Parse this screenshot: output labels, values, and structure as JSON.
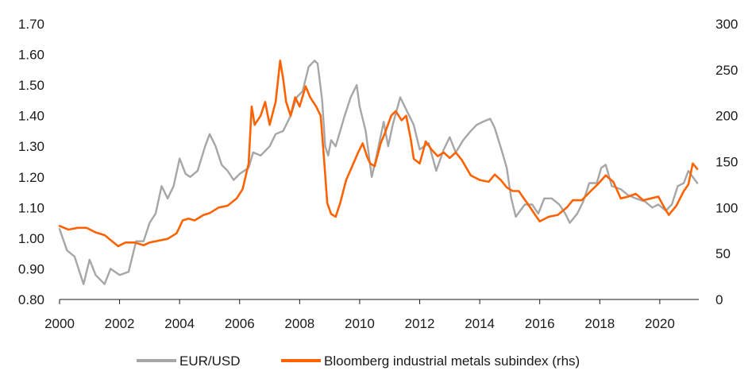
{
  "chart_data": {
    "type": "line",
    "title": "",
    "xlabel": "",
    "ylabel": "",
    "xlim": [
      2000,
      2021.3
    ],
    "ylim": [
      0.8,
      1.7
    ],
    "y2lim": [
      0,
      300
    ],
    "grid": false,
    "legend_position": "bottom",
    "x_ticks": [
      "2000",
      "2002",
      "2004",
      "2006",
      "2008",
      "2010",
      "2012",
      "2014",
      "2016",
      "2018",
      "2020"
    ],
    "y_ticks": [
      "0.80",
      "0.90",
      "1.00",
      "1.10",
      "1.20",
      "1.30",
      "1.40",
      "1.50",
      "1.60",
      "1.70"
    ],
    "y2_ticks": [
      "0",
      "50",
      "100",
      "150",
      "200",
      "250",
      "300"
    ],
    "series": [
      {
        "name": "EUR/USD",
        "axis": "left",
        "color": "#a6a6a6",
        "points": [
          [
            2000.0,
            1.03
          ],
          [
            2000.25,
            0.96
          ],
          [
            2000.5,
            0.94
          ],
          [
            2000.8,
            0.85
          ],
          [
            2001.0,
            0.93
          ],
          [
            2001.2,
            0.88
          ],
          [
            2001.5,
            0.85
          ],
          [
            2001.7,
            0.9
          ],
          [
            2002.0,
            0.88
          ],
          [
            2002.3,
            0.89
          ],
          [
            2002.55,
            0.99
          ],
          [
            2002.8,
            0.99
          ],
          [
            2003.0,
            1.05
          ],
          [
            2003.2,
            1.08
          ],
          [
            2003.4,
            1.17
          ],
          [
            2003.6,
            1.13
          ],
          [
            2003.8,
            1.17
          ],
          [
            2004.0,
            1.26
          ],
          [
            2004.2,
            1.21
          ],
          [
            2004.35,
            1.2
          ],
          [
            2004.6,
            1.22
          ],
          [
            2004.85,
            1.3
          ],
          [
            2005.0,
            1.34
          ],
          [
            2005.2,
            1.3
          ],
          [
            2005.4,
            1.24
          ],
          [
            2005.6,
            1.22
          ],
          [
            2005.8,
            1.19
          ],
          [
            2006.0,
            1.21
          ],
          [
            2006.3,
            1.23
          ],
          [
            2006.45,
            1.28
          ],
          [
            2006.7,
            1.27
          ],
          [
            2007.0,
            1.3
          ],
          [
            2007.2,
            1.34
          ],
          [
            2007.45,
            1.35
          ],
          [
            2007.7,
            1.4
          ],
          [
            2007.9,
            1.46
          ],
          [
            2008.1,
            1.48
          ],
          [
            2008.3,
            1.56
          ],
          [
            2008.5,
            1.58
          ],
          [
            2008.6,
            1.57
          ],
          [
            2008.75,
            1.45
          ],
          [
            2008.85,
            1.3
          ],
          [
            2008.95,
            1.27
          ],
          [
            2009.05,
            1.32
          ],
          [
            2009.2,
            1.3
          ],
          [
            2009.5,
            1.4
          ],
          [
            2009.7,
            1.46
          ],
          [
            2009.9,
            1.5
          ],
          [
            2010.0,
            1.43
          ],
          [
            2010.2,
            1.35
          ],
          [
            2010.4,
            1.2
          ],
          [
            2010.5,
            1.24
          ],
          [
            2010.8,
            1.38
          ],
          [
            2010.95,
            1.3
          ],
          [
            2011.1,
            1.37
          ],
          [
            2011.35,
            1.46
          ],
          [
            2011.55,
            1.42
          ],
          [
            2011.8,
            1.37
          ],
          [
            2012.0,
            1.29
          ],
          [
            2012.3,
            1.31
          ],
          [
            2012.55,
            1.22
          ],
          [
            2012.8,
            1.29
          ],
          [
            2013.0,
            1.33
          ],
          [
            2013.2,
            1.28
          ],
          [
            2013.45,
            1.32
          ],
          [
            2013.7,
            1.35
          ],
          [
            2013.9,
            1.37
          ],
          [
            2014.1,
            1.38
          ],
          [
            2014.35,
            1.39
          ],
          [
            2014.5,
            1.36
          ],
          [
            2014.75,
            1.28
          ],
          [
            2014.9,
            1.23
          ],
          [
            2015.05,
            1.13
          ],
          [
            2015.2,
            1.07
          ],
          [
            2015.5,
            1.11
          ],
          [
            2015.75,
            1.11
          ],
          [
            2015.95,
            1.08
          ],
          [
            2016.15,
            1.13
          ],
          [
            2016.4,
            1.13
          ],
          [
            2016.65,
            1.11
          ],
          [
            2016.85,
            1.08
          ],
          [
            2017.0,
            1.05
          ],
          [
            2017.25,
            1.08
          ],
          [
            2017.45,
            1.12
          ],
          [
            2017.65,
            1.18
          ],
          [
            2017.9,
            1.18
          ],
          [
            2018.05,
            1.23
          ],
          [
            2018.2,
            1.24
          ],
          [
            2018.4,
            1.17
          ],
          [
            2018.7,
            1.16
          ],
          [
            2018.95,
            1.14
          ],
          [
            2019.2,
            1.13
          ],
          [
            2019.5,
            1.12
          ],
          [
            2019.75,
            1.1
          ],
          [
            2019.95,
            1.11
          ],
          [
            2020.2,
            1.09
          ],
          [
            2020.4,
            1.11
          ],
          [
            2020.6,
            1.17
          ],
          [
            2020.8,
            1.18
          ],
          [
            2020.95,
            1.22
          ],
          [
            2021.1,
            1.2
          ],
          [
            2021.25,
            1.18
          ]
        ]
      },
      {
        "name": "Bloomberg industrial metals subindex (rhs)",
        "axis": "right",
        "color": "#ff6200",
        "points": [
          [
            2000.0,
            80
          ],
          [
            2000.3,
            76
          ],
          [
            2000.6,
            78
          ],
          [
            2000.9,
            78
          ],
          [
            2001.2,
            73
          ],
          [
            2001.5,
            70
          ],
          [
            2001.8,
            62
          ],
          [
            2001.95,
            58
          ],
          [
            2002.2,
            62
          ],
          [
            2002.5,
            62
          ],
          [
            2002.8,
            59
          ],
          [
            2003.0,
            62
          ],
          [
            2003.3,
            64
          ],
          [
            2003.6,
            66
          ],
          [
            2003.9,
            72
          ],
          [
            2004.1,
            86
          ],
          [
            2004.3,
            88
          ],
          [
            2004.5,
            86
          ],
          [
            2004.8,
            92
          ],
          [
            2005.0,
            94
          ],
          [
            2005.3,
            100
          ],
          [
            2005.6,
            102
          ],
          [
            2005.9,
            110
          ],
          [
            2006.1,
            120
          ],
          [
            2006.3,
            148
          ],
          [
            2006.4,
            210
          ],
          [
            2006.5,
            190
          ],
          [
            2006.7,
            200
          ],
          [
            2006.85,
            215
          ],
          [
            2007.0,
            190
          ],
          [
            2007.2,
            215
          ],
          [
            2007.35,
            260
          ],
          [
            2007.45,
            240
          ],
          [
            2007.55,
            215
          ],
          [
            2007.7,
            200
          ],
          [
            2007.85,
            220
          ],
          [
            2008.0,
            210
          ],
          [
            2008.2,
            232
          ],
          [
            2008.35,
            220
          ],
          [
            2008.55,
            210
          ],
          [
            2008.7,
            200
          ],
          [
            2008.82,
            150
          ],
          [
            2008.92,
            105
          ],
          [
            2009.05,
            93
          ],
          [
            2009.2,
            90
          ],
          [
            2009.35,
            105
          ],
          [
            2009.55,
            130
          ],
          [
            2009.75,
            145
          ],
          [
            2009.95,
            160
          ],
          [
            2010.1,
            170
          ],
          [
            2010.25,
            155
          ],
          [
            2010.35,
            148
          ],
          [
            2010.5,
            145
          ],
          [
            2010.7,
            170
          ],
          [
            2010.85,
            182
          ],
          [
            2011.05,
            200
          ],
          [
            2011.2,
            205
          ],
          [
            2011.4,
            195
          ],
          [
            2011.55,
            200
          ],
          [
            2011.7,
            175
          ],
          [
            2011.8,
            153
          ],
          [
            2012.0,
            148
          ],
          [
            2012.2,
            172
          ],
          [
            2012.4,
            163
          ],
          [
            2012.6,
            156
          ],
          [
            2012.8,
            160
          ],
          [
            2013.0,
            154
          ],
          [
            2013.2,
            160
          ],
          [
            2013.4,
            152
          ],
          [
            2013.7,
            135
          ],
          [
            2014.0,
            130
          ],
          [
            2014.3,
            128
          ],
          [
            2014.5,
            136
          ],
          [
            2014.7,
            130
          ],
          [
            2014.9,
            122
          ],
          [
            2015.1,
            118
          ],
          [
            2015.3,
            118
          ],
          [
            2015.6,
            104
          ],
          [
            2015.85,
            92
          ],
          [
            2016.0,
            85
          ],
          [
            2016.3,
            90
          ],
          [
            2016.6,
            92
          ],
          [
            2016.9,
            100
          ],
          [
            2017.1,
            108
          ],
          [
            2017.4,
            108
          ],
          [
            2017.7,
            118
          ],
          [
            2017.95,
            126
          ],
          [
            2018.2,
            135
          ],
          [
            2018.45,
            128
          ],
          [
            2018.7,
            110
          ],
          [
            2018.95,
            112
          ],
          [
            2019.2,
            115
          ],
          [
            2019.45,
            108
          ],
          [
            2019.7,
            110
          ],
          [
            2019.95,
            112
          ],
          [
            2020.15,
            100
          ],
          [
            2020.3,
            92
          ],
          [
            2020.55,
            102
          ],
          [
            2020.8,
            118
          ],
          [
            2020.95,
            125
          ],
          [
            2021.1,
            148
          ],
          [
            2021.25,
            142
          ]
        ]
      }
    ]
  }
}
